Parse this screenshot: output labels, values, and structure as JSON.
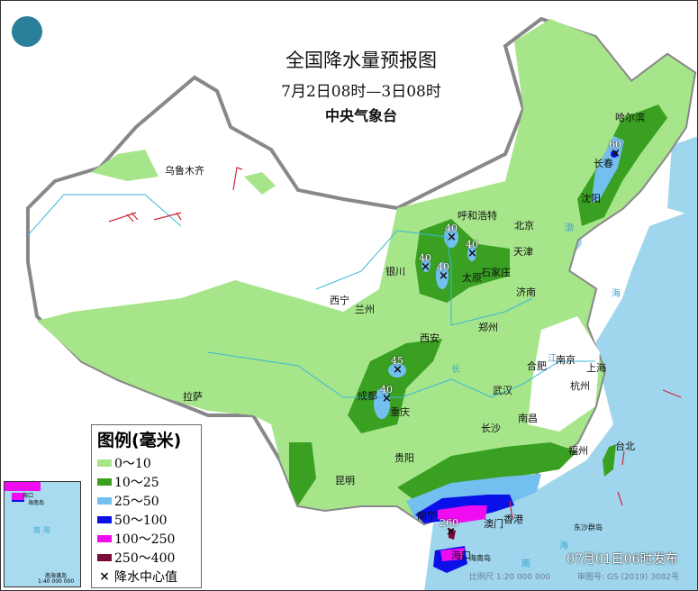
{
  "title": "全国降水量预报图",
  "period": "7月2日08时—3日08时",
  "agency": "中央气象台",
  "legend": {
    "title": "图例(毫米)",
    "items": [
      {
        "label": "0～10",
        "color": "#a6e58a"
      },
      {
        "label": "10～25",
        "color": "#3aa022"
      },
      {
        "label": "25～50",
        "color": "#72bff0"
      },
      {
        "label": "50～100",
        "color": "#0a10e8"
      },
      {
        "label": "100～250",
        "color": "#f00cf0"
      },
      {
        "label": "250～400",
        "color": "#7a0a3a"
      }
    ],
    "center_marker": "降水中心值"
  },
  "cities": [
    "乌鲁木齐",
    "呼和浩特",
    "北京",
    "天津",
    "石家庄",
    "太原",
    "银川",
    "西宁",
    "兰州",
    "济南",
    "郑州",
    "西安",
    "成都",
    "重庆",
    "武汉",
    "合肥",
    "南京",
    "上海",
    "杭州",
    "南昌",
    "长沙",
    "贵阳",
    "昆明",
    "拉萨",
    "福州",
    "台北",
    "哈尔滨",
    "长春",
    "沈阳",
    "南宁",
    "澳门",
    "香港",
    "海口",
    "海南岛",
    "东沙群岛"
  ],
  "sea_labels": [
    "海",
    "南",
    "海",
    "渤",
    "长",
    "江"
  ],
  "rain_centers": [
    "40",
    "40",
    "40",
    "40",
    "45",
    "40",
    "60",
    "260"
  ],
  "inset": {
    "sea": "南 海",
    "islands": "南海诸岛",
    "scale": "1:40 000 000",
    "hainan": "海南岛",
    "haikou": "海口"
  },
  "issued": "07月01日06时发布",
  "scale": "比例尺 1:20 000 000",
  "audit": "审图号: GS (2019) 3082号",
  "logo": "cma-logo-icon"
}
